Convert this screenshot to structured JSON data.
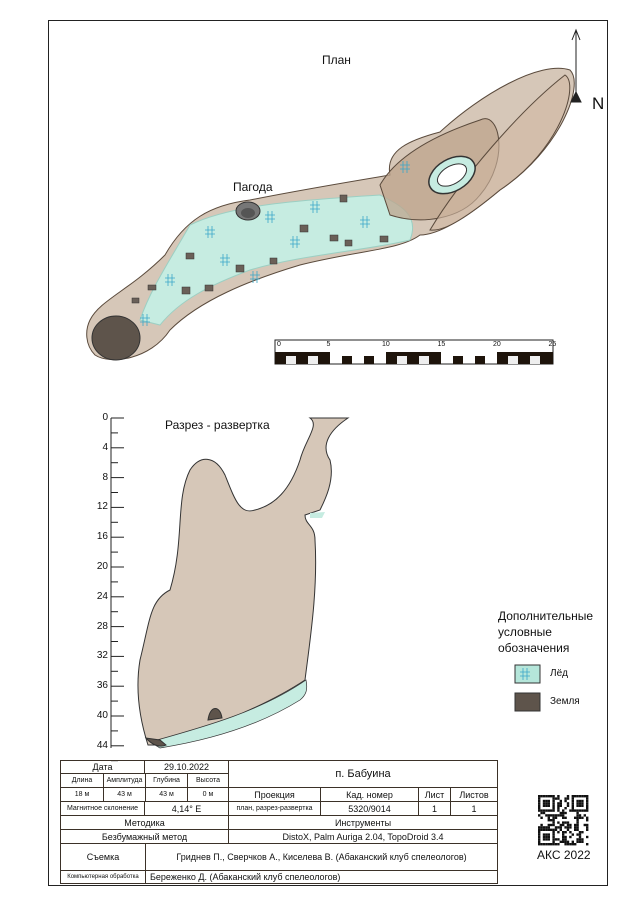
{
  "plan": {
    "title": "План",
    "label_pagoda": "Пагода",
    "north": "N",
    "scale": {
      "ticks": [
        "0",
        "5",
        "10",
        "15",
        "20",
        "25"
      ]
    }
  },
  "section": {
    "title": "Разрез - развертка",
    "depth_ticks": [
      "0",
      "4",
      "8",
      "12",
      "16",
      "20",
      "24",
      "28",
      "32",
      "36",
      "40",
      "44"
    ]
  },
  "legend": {
    "title_lines": [
      "Дополнительные",
      "условные",
      "обозначения"
    ],
    "items": [
      {
        "label": "Лёд",
        "color": "#b5e6da"
      },
      {
        "label": "Земля",
        "color": "#5e544b"
      }
    ]
  },
  "colors": {
    "rock": "#d6c7b8",
    "rock_outline": "#5a4a3c",
    "ice": "#c6ece1",
    "ice_marks": "#3aa7c9",
    "earth": "#5e544b",
    "frame": "#3b3128"
  },
  "table": {
    "date_label": "Дата",
    "date": "29.10.2022",
    "name": "п. Бабуина",
    "stats_labels": [
      "Длина",
      "Амплитуда",
      "Глубина",
      "Высота"
    ],
    "stats_values": [
      "18 м",
      "43 м",
      "43 м",
      "0 м"
    ],
    "decl_label": "Магнитное склонение",
    "decl": "4,14° E",
    "proj_label": "Проекция",
    "proj": "план, разрез-развертка",
    "cad_label": "Кад. номер",
    "cad": "5320/9014",
    "sheet_label": "Лист",
    "sheet": "1",
    "sheets_label": "Листов",
    "sheets": "1",
    "method_label": "Методика",
    "method": "Безбумажный метод",
    "instr_label": "Инструменты",
    "instr": "DistoX, Palm Auriga 2.04, TopoDroid 3.4",
    "survey_label": "Съемка",
    "survey": "Гриднев П., Сверчков А., Киселева В. (Абаканский клуб спелеологов)",
    "cad_proc_label": "Компьютерная обработка",
    "cad_proc": "Береженко Д. (Абаканский клуб спелеологов)"
  },
  "footer": {
    "club": "АКС 2022"
  }
}
